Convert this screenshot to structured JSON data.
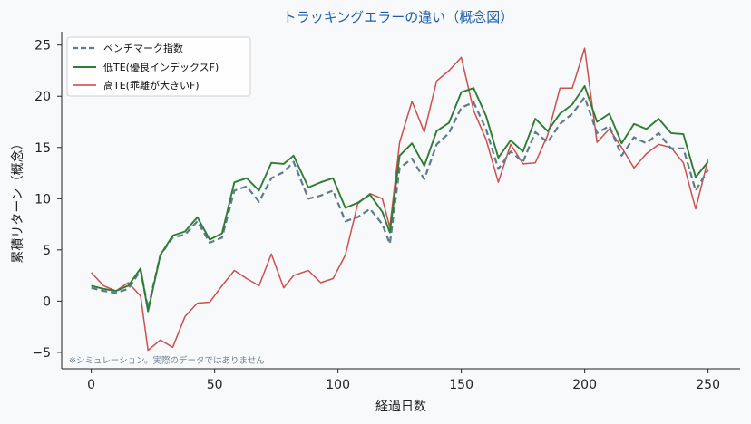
{
  "chart_data": {
    "type": "line",
    "title": "トラッキングエラーの違い（概念図）",
    "xlabel": "経過日数",
    "ylabel": "累積リターン（概念）",
    "xlim": [
      -12,
      263
    ],
    "ylim": [
      -6.6,
      26.3
    ],
    "xticks": [
      0,
      50,
      100,
      150,
      200,
      250
    ],
    "yticks": [
      -5,
      0,
      5,
      10,
      15,
      20,
      25
    ],
    "tick_labels_x": [
      "0",
      "50",
      "100",
      "150",
      "200",
      "250"
    ],
    "tick_labels_y": [
      "−5",
      "0",
      "5",
      "10",
      "15",
      "20",
      "25"
    ],
    "grid": false,
    "legend_position": "top-left",
    "note": "※シミュレーション。実際のデータではありません",
    "series": [
      {
        "name": "ベンチマーク指数",
        "color": "#5e7a8c",
        "style": "dashed",
        "x": [
          0,
          5,
          10,
          15,
          20,
          23,
          28,
          33,
          38,
          43,
          48,
          53,
          58,
          63,
          68,
          73,
          78,
          82,
          88,
          93,
          98,
          103,
          108,
          113,
          118,
          121,
          125,
          130,
          135,
          140,
          145,
          150,
          155,
          160,
          165,
          170,
          175,
          180,
          185,
          190,
          195,
          200,
          205,
          210,
          215,
          220,
          225,
          230,
          235,
          240,
          245,
          250
        ],
        "values": [
          1.3,
          1.0,
          0.8,
          1.2,
          3.0,
          -0.7,
          4.5,
          6.2,
          6.5,
          7.8,
          5.7,
          6.2,
          10.8,
          11.2,
          9.7,
          12.0,
          12.6,
          13.6,
          10.0,
          10.3,
          10.8,
          7.8,
          8.2,
          9.0,
          7.5,
          5.6,
          13.0,
          13.9,
          11.9,
          15.3,
          16.4,
          18.9,
          19.4,
          16.8,
          12.9,
          14.6,
          13.6,
          16.5,
          15.5,
          17.3,
          18.3,
          19.9,
          16.4,
          17.1,
          14.2,
          16.0,
          15.4,
          16.4,
          14.9,
          14.9,
          10.8,
          12.8
        ]
      },
      {
        "name": "低TE(優良インデックスF)",
        "color": "#2e7d32",
        "style": "solid",
        "x": [
          0,
          5,
          10,
          15,
          20,
          23,
          28,
          33,
          38,
          43,
          48,
          53,
          58,
          63,
          68,
          73,
          78,
          82,
          88,
          93,
          98,
          103,
          108,
          113,
          118,
          121,
          125,
          130,
          135,
          140,
          145,
          150,
          155,
          160,
          165,
          170,
          175,
          180,
          185,
          190,
          195,
          200,
          205,
          210,
          215,
          220,
          225,
          230,
          235,
          240,
          245,
          250
        ],
        "values": [
          1.5,
          1.2,
          1.0,
          1.5,
          3.2,
          -1.0,
          4.5,
          6.4,
          6.8,
          8.2,
          6.0,
          6.6,
          11.6,
          12.0,
          10.8,
          13.5,
          13.4,
          14.2,
          11.1,
          11.6,
          12.0,
          9.1,
          9.6,
          10.4,
          8.7,
          6.7,
          14.2,
          15.4,
          13.2,
          16.6,
          17.4,
          20.4,
          20.8,
          18.1,
          14.0,
          15.7,
          14.6,
          17.8,
          16.6,
          18.3,
          19.2,
          21.0,
          17.5,
          18.3,
          15.4,
          17.3,
          16.8,
          17.8,
          16.4,
          16.3,
          12.1,
          13.6
        ]
      },
      {
        "name": "高TE(乖離が大きいF)",
        "color": "#cc4444",
        "style": "solid",
        "x": [
          0,
          5,
          10,
          15,
          20,
          23,
          28,
          33,
          38,
          43,
          48,
          53,
          58,
          63,
          68,
          73,
          78,
          82,
          88,
          93,
          98,
          103,
          108,
          113,
          118,
          121,
          125,
          130,
          135,
          140,
          145,
          150,
          155,
          160,
          165,
          170,
          175,
          180,
          185,
          190,
          195,
          200,
          205,
          210,
          215,
          220,
          225,
          230,
          235,
          240,
          245,
          250
        ],
        "values": [
          2.8,
          1.5,
          1.0,
          1.8,
          0.5,
          -4.8,
          -3.8,
          -4.5,
          -1.5,
          -0.2,
          -0.1,
          1.5,
          3.0,
          2.2,
          1.5,
          4.6,
          1.3,
          2.5,
          3.0,
          1.8,
          2.2,
          4.5,
          9.5,
          10.5,
          10.0,
          7.2,
          15.5,
          19.5,
          16.5,
          21.5,
          22.5,
          23.8,
          18.6,
          15.8,
          11.6,
          15.3,
          13.4,
          13.5,
          16.2,
          20.8,
          20.8,
          24.7,
          15.5,
          16.8,
          15.0,
          13.0,
          14.4,
          15.3,
          15.0,
          13.5,
          9.0,
          13.8
        ]
      }
    ]
  }
}
